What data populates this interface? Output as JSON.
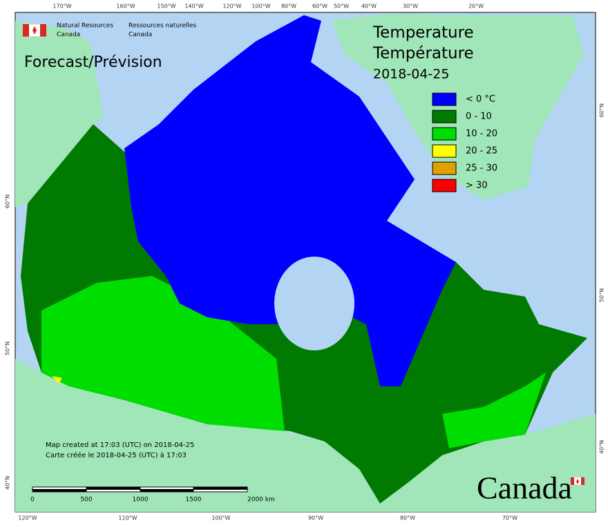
{
  "logo": {
    "en_line1": "Natural Resources",
    "en_line2": "Canada",
    "fr_line1": "Ressources naturelles",
    "fr_line2": "Canada"
  },
  "subtitle": "Forecast/Prévision",
  "title": {
    "en": "Temperature",
    "fr": "Température",
    "date": "2018-04-25"
  },
  "legend": {
    "items": [
      {
        "label": "< 0 °C",
        "color": "#0000ff"
      },
      {
        "label": "0 - 10",
        "color": "#007a00"
      },
      {
        "label": "10 - 20",
        "color": "#00dd00"
      },
      {
        "label": "20 - 25",
        "color": "#ffff00"
      },
      {
        "label": "25 - 30",
        "color": "#e0a000"
      },
      {
        "label": "> 30",
        "color": "#ff0000"
      }
    ]
  },
  "notes": {
    "en": "Map created at 17:03 (UTC) on 2018-04-25",
    "fr": "Carte créée le 2018-04-25 (UTC) à 17:03"
  },
  "scale_bar": {
    "labels": [
      "0",
      "500",
      "1000",
      "1500",
      "2000 km"
    ]
  },
  "wordmark": "Canada",
  "graticule": {
    "top": [
      "170°W",
      "160°W",
      "150°W",
      "140°W",
      "120°W",
      "100°W",
      "80°W",
      "60°W",
      "50°W",
      "40°W",
      "30°W",
      "20°W"
    ],
    "bottom": [
      "120°W",
      "110°W",
      "100°W",
      "90°W",
      "80°W",
      "70°W"
    ],
    "left": [
      "60°N",
      "50°N",
      "40°N"
    ],
    "right": [
      "60°N",
      "50°N",
      "40°N"
    ]
  }
}
